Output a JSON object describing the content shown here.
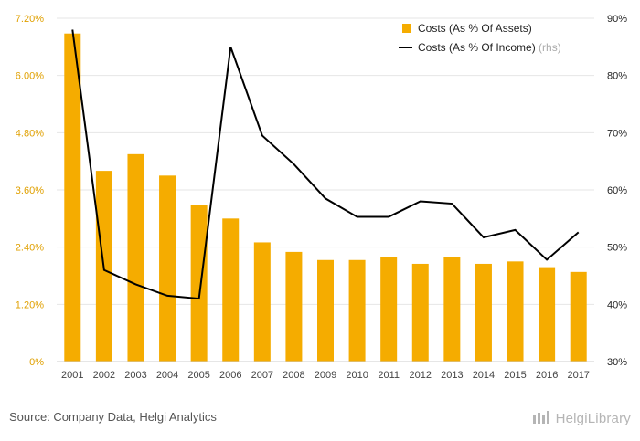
{
  "chart_data": {
    "type": "bar+line",
    "categories": [
      "2001",
      "2002",
      "2003",
      "2004",
      "2005",
      "2006",
      "2007",
      "2008",
      "2009",
      "2010",
      "2011",
      "2012",
      "2013",
      "2014",
      "2015",
      "2016",
      "2017"
    ],
    "series": [
      {
        "name": "Costs (As % Of Assets)",
        "kind": "bar",
        "axis": "left",
        "color": "#f5ac00",
        "values": [
          6.88,
          4.0,
          4.35,
          3.9,
          3.28,
          3.0,
          2.5,
          2.3,
          2.13,
          2.13,
          2.2,
          2.05,
          2.2,
          2.05,
          2.1,
          1.98,
          1.88
        ]
      },
      {
        "name": "Costs (As % Of Income)",
        "legend_suffix": "(rhs)",
        "kind": "line",
        "axis": "right",
        "color": "#000000",
        "values": [
          88,
          46,
          43.5,
          41.5,
          41,
          85,
          69.5,
          64.5,
          58.5,
          55.3,
          55.3,
          58,
          57.6,
          51.7,
          53,
          47.8,
          52.6
        ]
      }
    ],
    "left_axis": {
      "ylim": [
        0,
        7.2
      ],
      "ticks": [
        0,
        1.2,
        2.4,
        3.6,
        4.8,
        6.0,
        7.2
      ],
      "tick_labels": [
        "0%",
        "1.20%",
        "2.40%",
        "3.60%",
        "4.80%",
        "6.00%",
        "7.20%"
      ]
    },
    "right_axis": {
      "ylim": [
        30,
        90
      ],
      "ticks": [
        30,
        40,
        50,
        60,
        70,
        80,
        90
      ],
      "tick_labels": [
        "30%",
        "40%",
        "50%",
        "60%",
        "70%",
        "80%",
        "90%"
      ]
    },
    "legend": {
      "position": "top-right",
      "items": [
        "Costs (As % Of Assets)",
        "Costs (As % Of Income)"
      ],
      "rhs_marker": "(rhs)"
    },
    "grid": true
  },
  "footer": {
    "source": "Source: Company Data, Helgi Analytics",
    "brand": "HelgiLibrary"
  },
  "colors": {
    "bar": "#f5ac00",
    "left_tick": "#e0a000",
    "grid": "#e6e6e6",
    "line": "#000000"
  }
}
